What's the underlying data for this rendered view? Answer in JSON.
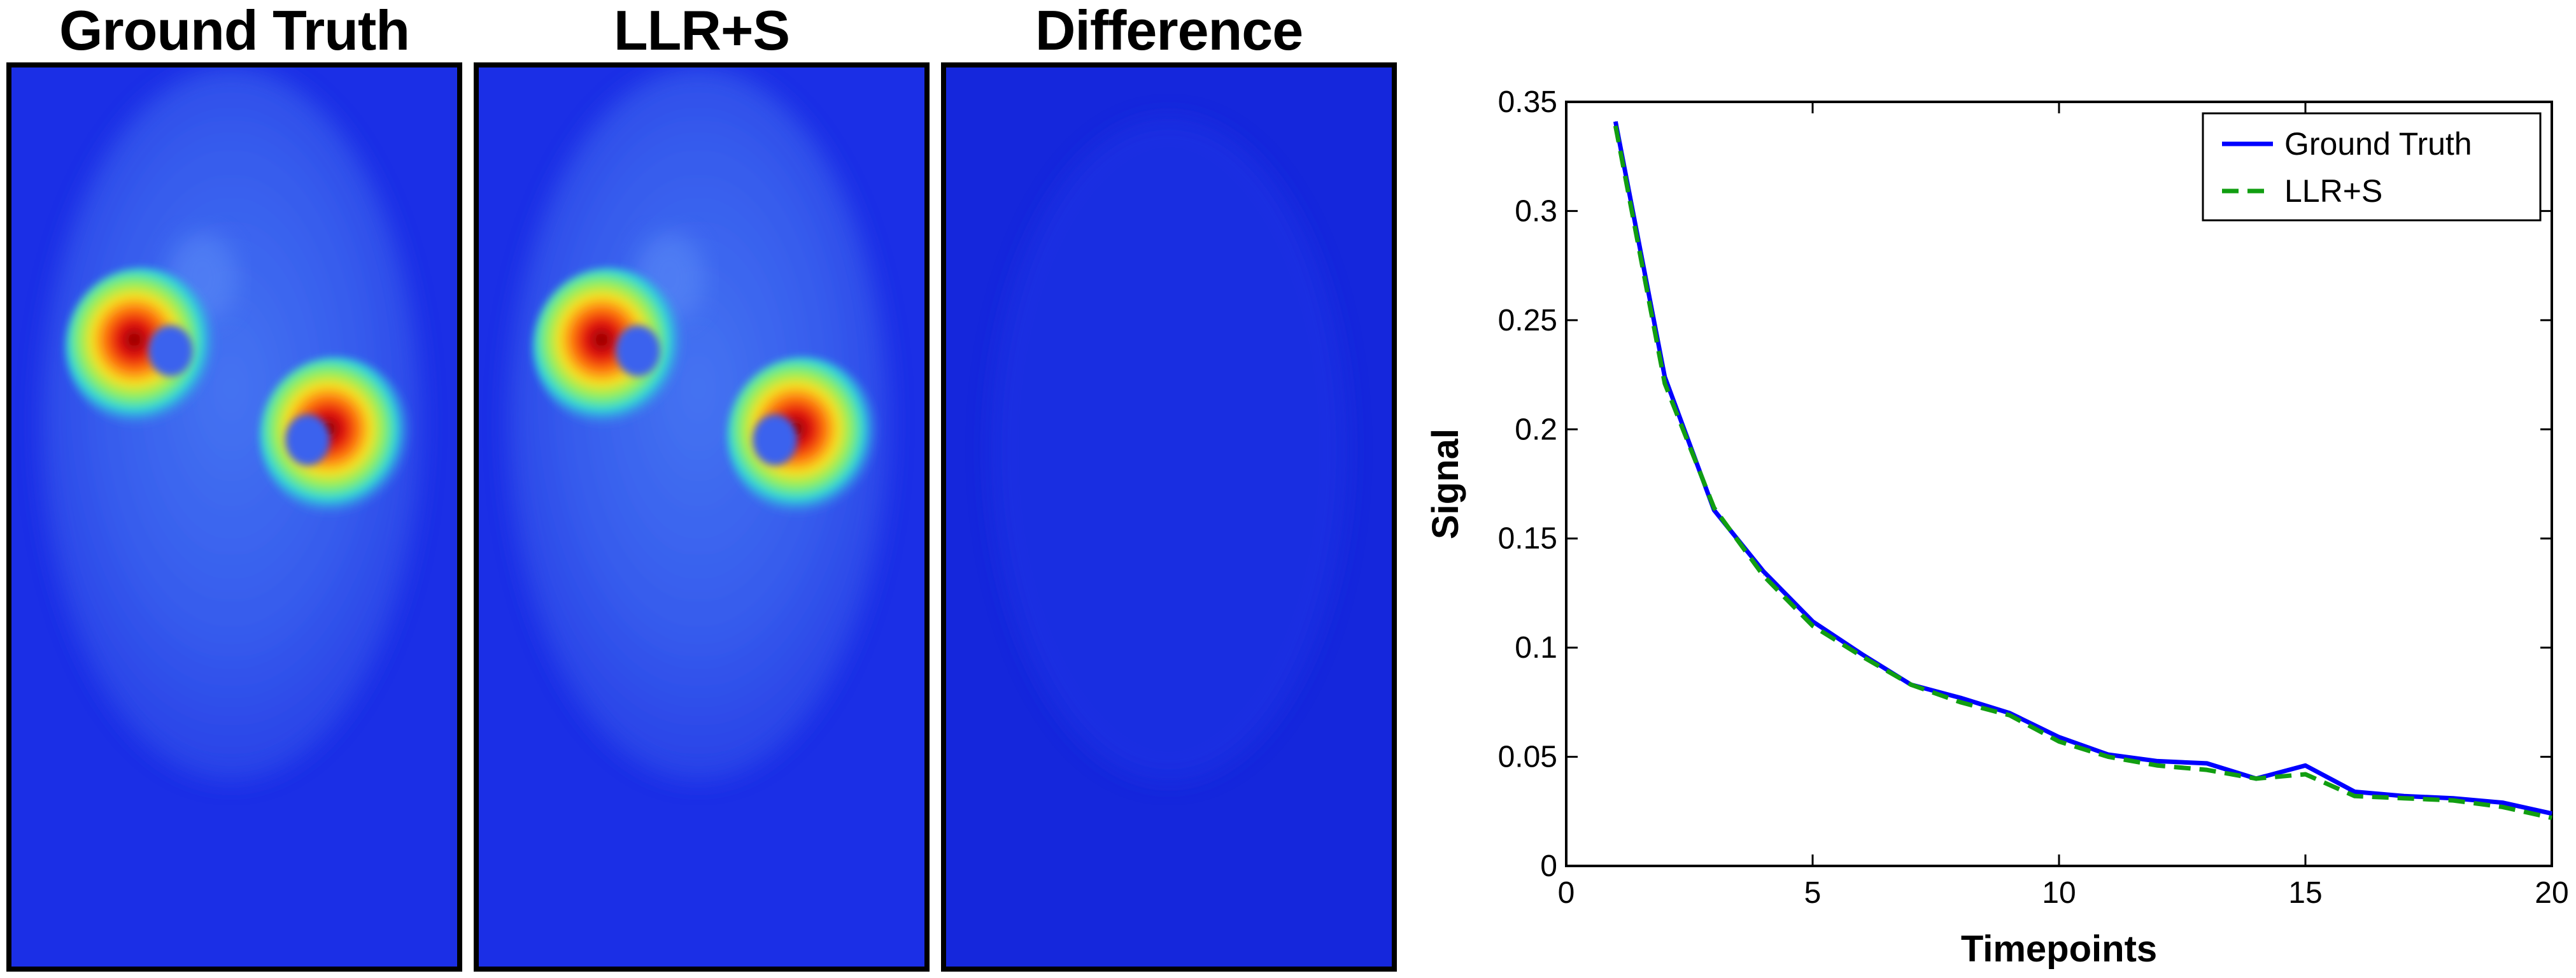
{
  "panels": [
    {
      "title": "Ground Truth"
    },
    {
      "title": "LLR+S"
    },
    {
      "title": "Difference"
    }
  ],
  "colors": {
    "background_blue": "#1b2fe6",
    "ground_truth_line": "#0000ff",
    "llrs_line": "#119e11"
  },
  "chart_data": {
    "type": "line",
    "title": "",
    "xlabel": "Timepoints",
    "ylabel": "Signal",
    "xlim": [
      0,
      20
    ],
    "ylim": [
      0,
      0.35
    ],
    "xticks": [
      0,
      5,
      10,
      15,
      20
    ],
    "yticks": [
      0,
      0.05,
      0.1,
      0.15,
      0.2,
      0.25,
      0.3,
      0.35
    ],
    "ytick_labels": [
      "0",
      "0.05",
      "0.1",
      "0.15",
      "0.2",
      "0.25",
      "0.3",
      "0.35"
    ],
    "x": [
      1,
      2,
      3,
      4,
      5,
      6,
      7,
      8,
      9,
      10,
      11,
      12,
      13,
      14,
      15,
      16,
      17,
      18,
      19,
      20
    ],
    "series": [
      {
        "name": "Ground Truth",
        "style": "solid",
        "values": [
          0.341,
          0.224,
          0.163,
          0.135,
          0.112,
          0.097,
          0.083,
          0.077,
          0.07,
          0.059,
          0.051,
          0.048,
          0.047,
          0.04,
          0.046,
          0.034,
          0.032,
          0.031,
          0.029,
          0.024
        ]
      },
      {
        "name": "LLR+S",
        "style": "dashed",
        "values": [
          0.339,
          0.221,
          0.164,
          0.133,
          0.11,
          0.096,
          0.083,
          0.075,
          0.069,
          0.057,
          0.05,
          0.046,
          0.044,
          0.04,
          0.042,
          0.032,
          0.031,
          0.03,
          0.027,
          0.022
        ]
      }
    ],
    "legend_position": "top-right"
  }
}
